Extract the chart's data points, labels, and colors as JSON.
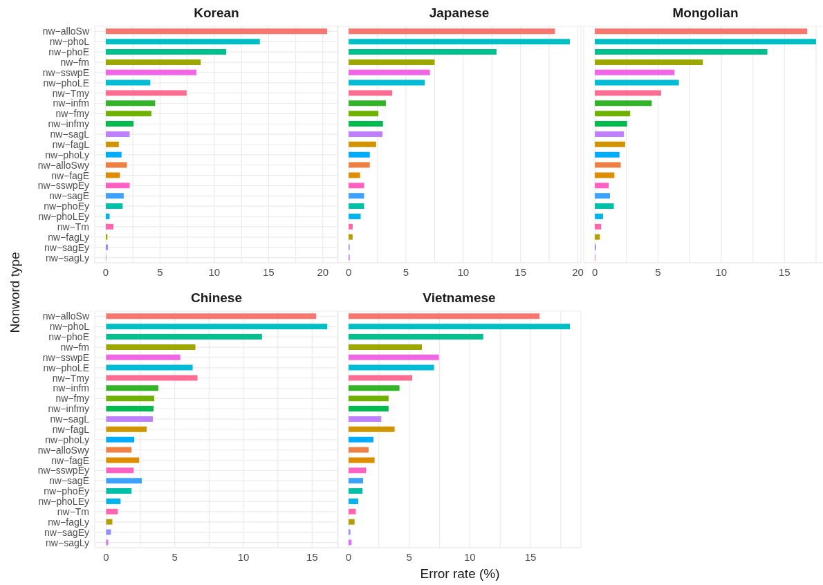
{
  "chart_data": [
    {
      "type": "bar",
      "orientation": "horizontal",
      "title": "Korean",
      "ylabel": "Nonword type",
      "categories": [
        "nw−alloSw",
        "nw−phoL",
        "nw−phoE",
        "nw−fm",
        "nw−sswpE",
        "nw−phoLE",
        "nw−Tmy",
        "nw−infm",
        "nw−fmy",
        "nw−infmy",
        "nw−sagL",
        "nw−fagL",
        "nw−phoLy",
        "nw−alloSwy",
        "nw−fagE",
        "nw−sswpEy",
        "nw−sagE",
        "nw−phoEy",
        "nw−phoLEy",
        "nw−Tm",
        "nw−fagLy",
        "nw−sagEy",
        "nw−sagLy"
      ],
      "values": [
        20.4,
        14.2,
        11.1,
        8.75,
        8.35,
        4.1,
        7.45,
        4.55,
        4.2,
        2.55,
        2.2,
        1.2,
        1.45,
        1.95,
        1.3,
        2.2,
        1.65,
        1.55,
        0.35,
        0.7,
        0.15,
        0.2,
        0.05
      ],
      "colors": [
        "#f8766d",
        "#00bfc4",
        "#00c08d",
        "#9ca700",
        "#f265e7",
        "#00bcd6",
        "#ff6c91",
        "#31b425",
        "#6fb000",
        "#00bb4e",
        "#bf80ff",
        "#cf9400",
        "#00adfa",
        "#ee8043",
        "#de8c00",
        "#ff61c3",
        "#3da1ff",
        "#00c1a7",
        "#00b5ee",
        "#ff65ac",
        "#b3a000",
        "#8f91ff",
        "#dd71fa"
      ],
      "xlim": [
        -1.02,
        21.42
      ],
      "xticks": [
        0,
        {
          "value": 2.5,
          "label": null
        },
        5,
        {
          "value": 7.5,
          "label": null
        },
        10,
        {
          "value": 12.5,
          "label": null
        },
        15,
        {
          "value": 17.5,
          "label": null
        },
        20
      ],
      "grid": true
    },
    {
      "type": "bar",
      "orientation": "horizontal",
      "title": "Japanese",
      "categories": [
        null,
        null,
        null,
        null,
        null,
        null,
        null,
        null,
        null,
        null,
        null,
        null,
        null,
        null,
        null,
        null,
        null,
        null,
        null,
        null,
        null,
        null,
        null
      ],
      "values": [
        18.0,
        19.3,
        12.9,
        7.5,
        7.1,
        6.65,
        3.8,
        3.25,
        2.6,
        3.0,
        2.95,
        2.4,
        1.85,
        1.85,
        1.0,
        1.35,
        1.35,
        1.35,
        1.05,
        0.35,
        0.35,
        0.1,
        0.1
      ],
      "colors": [
        "#f8766d",
        "#00bfc4",
        "#00c08d",
        "#9ca700",
        "#f265e7",
        "#00bcd6",
        "#ff6c91",
        "#31b425",
        "#6fb000",
        "#00bb4e",
        "#bf80ff",
        "#cf9400",
        "#00adfa",
        "#ee8043",
        "#de8c00",
        "#ff61c3",
        "#3da1ff",
        "#00c1a7",
        "#00b5ee",
        "#ff65ac",
        "#b3a000",
        "#8f91ff",
        "#dd71fa"
      ],
      "xlim": [
        -0.97,
        20.27
      ],
      "xticks": [
        0,
        {
          "value": 2.5,
          "label": null
        },
        5,
        {
          "value": 7.5,
          "label": null
        },
        10,
        {
          "value": 12.5,
          "label": null
        },
        15,
        {
          "value": 17.5,
          "label": null
        },
        20
      ],
      "grid": true,
      "tick_labels": "x"
    },
    {
      "type": "bar",
      "orientation": "horizontal",
      "title": "Mongolian",
      "categories": [
        null,
        null,
        null,
        null,
        null,
        null,
        null,
        null,
        null,
        null,
        null,
        null,
        null,
        null,
        null,
        null,
        null,
        null,
        null,
        null,
        null,
        null,
        null
      ],
      "values": [
        16.8,
        17.5,
        13.65,
        8.55,
        6.3,
        6.65,
        5.25,
        4.5,
        2.8,
        2.55,
        2.3,
        2.4,
        1.95,
        2.05,
        1.55,
        1.1,
        1.2,
        1.5,
        0.65,
        0.5,
        0.4,
        0.1,
        0.05
      ],
      "colors": [
        "#f8766d",
        "#00bfc4",
        "#00c08d",
        "#9ca700",
        "#f265e7",
        "#00bcd6",
        "#ff6c91",
        "#31b425",
        "#6fb000",
        "#00bb4e",
        "#bf80ff",
        "#cf9400",
        "#00adfa",
        "#ee8043",
        "#de8c00",
        "#ff61c3",
        "#3da1ff",
        "#00c1a7",
        "#00b5ee",
        "#ff65ac",
        "#b3a000",
        "#8f91ff",
        "#dd71fa"
      ],
      "xlim": [
        -0.88,
        18.38
      ],
      "xticks": [
        0,
        {
          "value": 2.5,
          "label": null
        },
        5,
        {
          "value": 7.5,
          "label": null
        },
        10,
        {
          "value": 12.5,
          "label": null
        },
        15,
        {
          "value": 17.5,
          "label": null
        }
      ],
      "grid": true,
      "tick_labels": "x"
    },
    {
      "type": "bar",
      "orientation": "horizontal",
      "title": "Chinese",
      "categories": [
        "nw−alloSw",
        "nw−phoL",
        "nw−phoE",
        "nw−fm",
        "nw−sswpE",
        "nw−phoLE",
        "nw−Tmy",
        "nw−infm",
        "nw−fmy",
        "nw−infmy",
        "nw−sagL",
        "nw−fagL",
        "nw−phoLy",
        "nw−alloSwy",
        "nw−fagE",
        "nw−sswpEy",
        "nw−sagE",
        "nw−phoEy",
        "nw−phoLEy",
        "nw−Tm",
        "nw−fagLy",
        "nw−sagEy",
        "nw−sagLy"
      ],
      "values": [
        15.3,
        16.1,
        11.35,
        6.5,
        5.4,
        6.3,
        6.65,
        3.8,
        3.5,
        3.45,
        3.4,
        2.95,
        2.05,
        1.85,
        2.4,
        2.0,
        2.6,
        1.85,
        1.05,
        0.85,
        0.45,
        0.35,
        0.15
      ],
      "colors": [
        "#f8766d",
        "#00bfc4",
        "#00c08d",
        "#9ca700",
        "#f265e7",
        "#00bcd6",
        "#ff6c91",
        "#31b425",
        "#6fb000",
        "#00bb4e",
        "#bf80ff",
        "#cf9400",
        "#00adfa",
        "#ee8043",
        "#de8c00",
        "#ff61c3",
        "#3da1ff",
        "#00c1a7",
        "#00b5ee",
        "#ff65ac",
        "#b3a000",
        "#8f91ff",
        "#dd71fa"
      ],
      "xlim": [
        -0.83,
        16.9
      ],
      "xticks": [
        0,
        {
          "value": 2.5,
          "label": null
        },
        5,
        {
          "value": 7.5,
          "label": null
        },
        10,
        {
          "value": 12.5,
          "label": null
        },
        15
      ],
      "grid": true
    },
    {
      "type": "bar",
      "orientation": "horizontal",
      "title": "Vietnamese",
      "xlabel": "Error rate (%)",
      "categories": [
        null,
        null,
        null,
        null,
        null,
        null,
        null,
        null,
        null,
        null,
        null,
        null,
        null,
        null,
        null,
        null,
        null,
        null,
        null,
        null,
        null,
        null,
        null
      ],
      "values": [
        15.75,
        18.25,
        11.1,
        6.05,
        7.45,
        7.05,
        5.25,
        4.2,
        3.3,
        3.3,
        2.7,
        3.8,
        2.05,
        1.65,
        2.15,
        1.45,
        1.2,
        1.15,
        0.8,
        0.6,
        0.5,
        0.15,
        0.25
      ],
      "colors": [
        "#f8766d",
        "#00bfc4",
        "#00c08d",
        "#9ca700",
        "#f265e7",
        "#00bcd6",
        "#ff6c91",
        "#31b425",
        "#6fb000",
        "#00bb4e",
        "#bf80ff",
        "#cf9400",
        "#00adfa",
        "#ee8043",
        "#de8c00",
        "#ff61c3",
        "#3da1ff",
        "#00c1a7",
        "#00b5ee",
        "#ff65ac",
        "#b3a000",
        "#8f91ff",
        "#dd71fa"
      ],
      "xlim": [
        -0.91,
        19.16
      ],
      "xticks": [
        0,
        {
          "value": 2.5,
          "label": null
        },
        5,
        {
          "value": 7.5,
          "label": null
        },
        10,
        {
          "value": 12.5,
          "label": null
        },
        15,
        {
          "value": 17.5,
          "label": null
        }
      ],
      "grid": true,
      "tick_labels": "x"
    }
  ]
}
